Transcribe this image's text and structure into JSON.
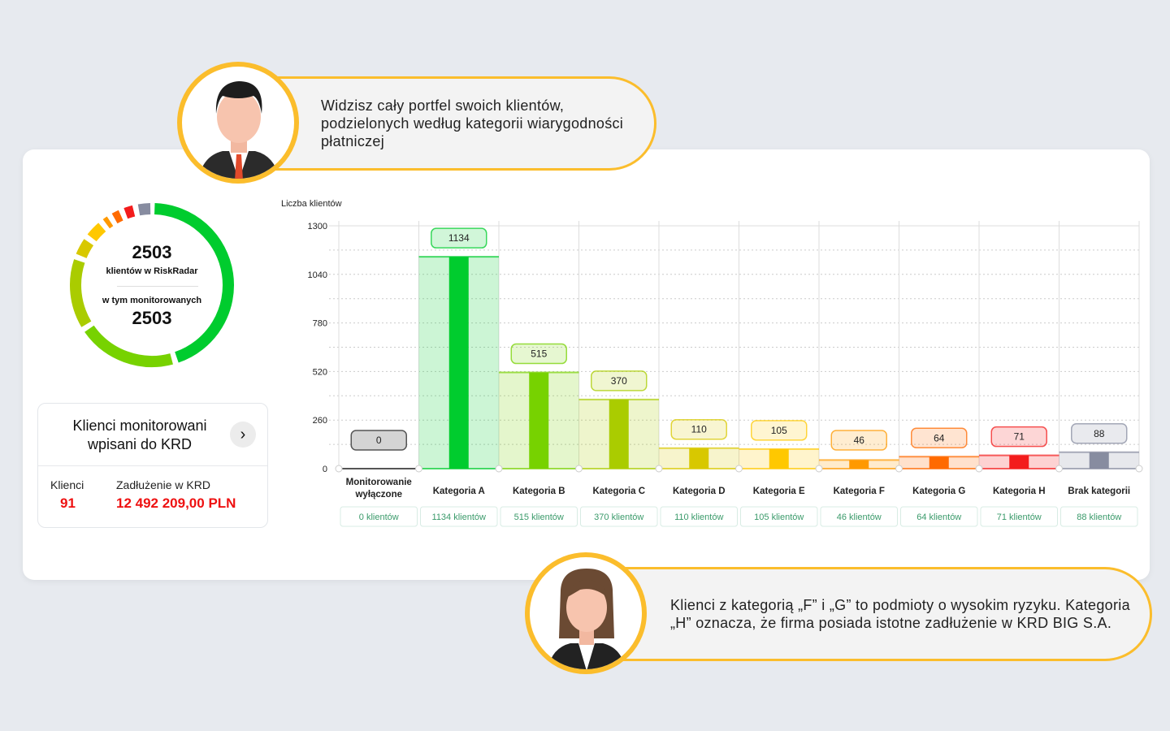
{
  "donut": {
    "total": "2503",
    "total_label": "klientów w RiskRadar",
    "monitored_label": "w tym monitorowanych",
    "monitored": "2503"
  },
  "krd_card": {
    "title": "Klienci monitorowani wpisani do KRD",
    "clients_label": "Klienci",
    "clients_value": "91",
    "debt_label": "Zadłużenie w KRD",
    "debt_value": "12 492 209,00 PLN"
  },
  "bubbles": {
    "top": "Widzisz cały portfel swoich klientów, podzielonych według kategorii wiarygodności płatniczej",
    "bottom": "Klienci z kategorią „F” i „G” to podmioty o wysokim ryzyku. Kategoria „H” oznacza, że firma posiada istotne zadłużenie w KRD BIG S.A."
  },
  "chart_data": {
    "type": "bar",
    "ylabel": "Liczba klientów",
    "ylim": [
      0,
      1300
    ],
    "yticks": [
      "0",
      "260",
      "520",
      "780",
      "1040",
      "1300"
    ],
    "grid": true,
    "categories": [
      "Monitorowanie wyłączone",
      "Kategoria A",
      "Kategoria B",
      "Kategoria C",
      "Kategoria D",
      "Kategoria E",
      "Kategoria F",
      "Kategoria G",
      "Kategoria H",
      "Brak kategorii"
    ],
    "values": [
      0,
      1134,
      515,
      370,
      110,
      105,
      46,
      64,
      71,
      88
    ],
    "value_labels": [
      "0",
      "1134",
      "515",
      "370",
      "110",
      "105",
      "46",
      "64",
      "71",
      "88"
    ],
    "count_labels": [
      "0 klientów",
      "1134 klientów",
      "515 klientów",
      "370 klientów",
      "110 klientów",
      "105 klientów",
      "46 klientów",
      "64 klientów",
      "71 klientów",
      "88 klientów"
    ],
    "colors": [
      "#555555",
      "#00cc2e",
      "#77d200",
      "#aacc00",
      "#d8c800",
      "#ffc800",
      "#ff9900",
      "#ff6a00",
      "#f31c1c",
      "#878ca0"
    ]
  }
}
